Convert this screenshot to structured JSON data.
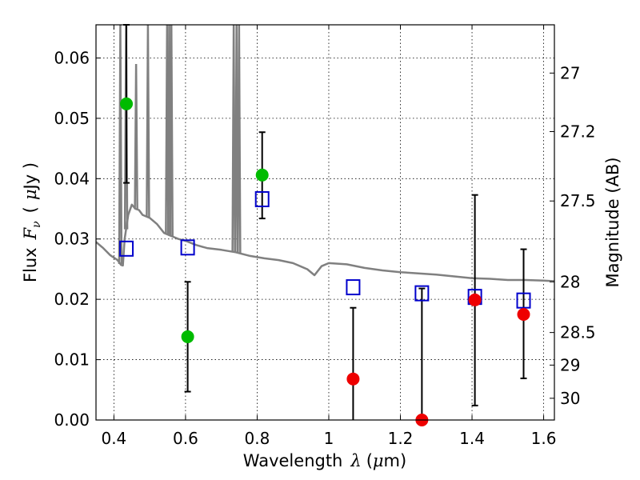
{
  "chart_data": {
    "type": "scatter",
    "xlabel": "Wavelength",
    "xlabel_symbol": "λ",
    "xlabel_unit_open": "(",
    "xlabel_unit_mu": "μ",
    "xlabel_unit_rest": "m)",
    "ylabel": "Flux",
    "ylabel_symbol": "F",
    "ylabel_subscript": "ν",
    "ylabel_unit_open": "(",
    "ylabel_unit_mu": "μ",
    "ylabel_unit_rest": "Jy )",
    "y2label": "Magnitude (AB)",
    "xlim": [
      0.35,
      1.63
    ],
    "ylim": [
      0.0,
      0.0655
    ],
    "grid": true,
    "x_ticks": [
      0.4,
      0.6,
      0.8,
      1.0,
      1.2,
      1.4,
      1.6
    ],
    "x_tick_labels": [
      "0.4",
      "0.6",
      "0.8",
      "1",
      "1.2",
      "1.4",
      "1.6"
    ],
    "y_ticks": [
      0.0,
      0.01,
      0.02,
      0.03,
      0.04,
      0.05,
      0.06
    ],
    "y_tick_labels": [
      "0.00",
      "0.01",
      "0.02",
      "0.03",
      "0.04",
      "0.05",
      "0.06"
    ],
    "y2_ticks": [
      {
        "label": "27",
        "flux": 0.0575
      },
      {
        "label": "27.2",
        "flux": 0.0478
      },
      {
        "label": "27.5",
        "flux": 0.0363
      },
      {
        "label": "28",
        "flux": 0.0229
      },
      {
        "label": "28.5",
        "flux": 0.0145
      },
      {
        "label": "29",
        "flux": 0.0091
      },
      {
        "label": "30",
        "flux": 0.0036
      }
    ],
    "observed": {
      "x": [
        0.435,
        0.606,
        0.814,
        1.068,
        1.26,
        1.408,
        1.544
      ],
      "y": [
        0.0524,
        0.0138,
        0.0406,
        0.0068,
        0.0,
        0.0199,
        0.0175
      ],
      "err_low": [
        0.0393,
        0.0047,
        0.0334,
        0.0,
        0.0,
        0.0024,
        0.0069
      ],
      "err_high": [
        0.0655,
        0.0229,
        0.0477,
        0.0186,
        0.0218,
        0.0373,
        0.0283
      ],
      "colors": [
        "#00bb00",
        "#00bb00",
        "#00bb00",
        "#ee0000",
        "#ee0000",
        "#ee0000",
        "#ee0000"
      ]
    },
    "model_photometry": {
      "x": [
        0.435,
        0.606,
        0.814,
        1.068,
        1.26,
        1.408,
        1.544
      ],
      "y": [
        0.0284,
        0.0286,
        0.0366,
        0.022,
        0.021,
        0.0204,
        0.0198
      ],
      "color": "#0000cc"
    },
    "model_spectrum": {
      "color": "#808080",
      "x": [
        0.35,
        0.37,
        0.39,
        0.41,
        0.42,
        0.425,
        0.43,
        0.44,
        0.45,
        0.46,
        0.47,
        0.48,
        0.5,
        0.52,
        0.54,
        0.56,
        0.58,
        0.6,
        0.63,
        0.66,
        0.7,
        0.74,
        0.78,
        0.82,
        0.86,
        0.9,
        0.94,
        0.96,
        0.98,
        1.0,
        1.05,
        1.1,
        1.15,
        1.2,
        1.25,
        1.3,
        1.35,
        1.4,
        1.45,
        1.5,
        1.55,
        1.6,
        1.63
      ],
      "y": [
        0.0295,
        0.0285,
        0.0273,
        0.0265,
        0.0257,
        0.0256,
        0.03,
        0.034,
        0.0357,
        0.035,
        0.0348,
        0.034,
        0.0335,
        0.0325,
        0.031,
        0.0305,
        0.03,
        0.0297,
        0.029,
        0.0285,
        0.0282,
        0.0278,
        0.0272,
        0.0268,
        0.0265,
        0.026,
        0.025,
        0.024,
        0.0255,
        0.026,
        0.0258,
        0.0252,
        0.0248,
        0.0245,
        0.0243,
        0.0241,
        0.0238,
        0.0235,
        0.0234,
        0.0232,
        0.0232,
        0.0231,
        0.023
      ]
    },
    "emission_lines": [
      {
        "x": 0.418,
        "peak": 0.0655
      },
      {
        "x": 0.434,
        "peak": 0.0655
      },
      {
        "x": 0.462,
        "peak": 0.059
      },
      {
        "x": 0.495,
        "peak": 0.0655
      },
      {
        "x": 0.5485,
        "peak": 0.0655
      },
      {
        "x": 0.5545,
        "peak": 0.0655
      },
      {
        "x": 0.5605,
        "peak": 0.0655
      },
      {
        "x": 0.7345,
        "peak": 0.0655
      },
      {
        "x": 0.7425,
        "peak": 0.0655
      },
      {
        "x": 0.7495,
        "peak": 0.0655
      }
    ]
  }
}
